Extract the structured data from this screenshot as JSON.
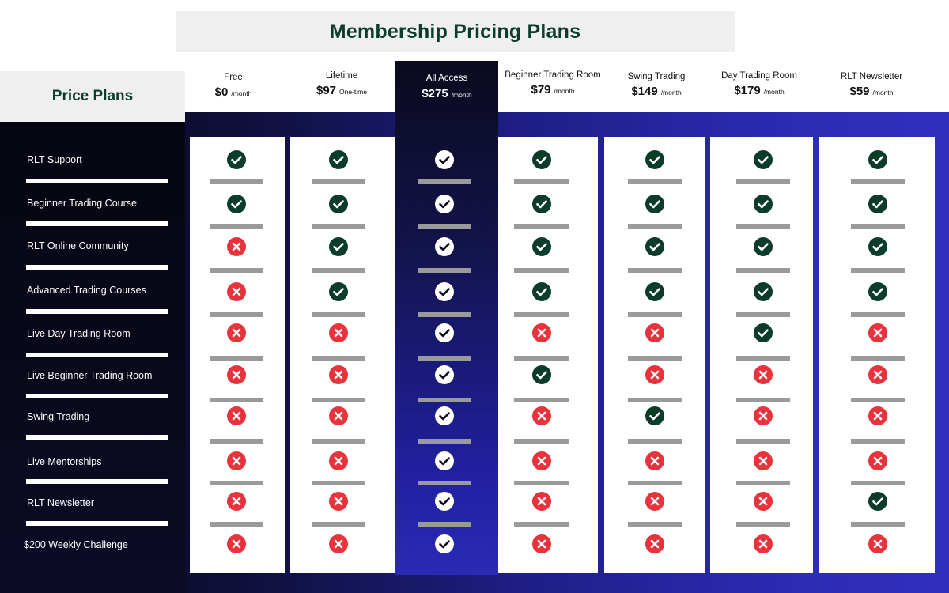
{
  "title": "Membership Pricing Plans",
  "price_plans_label": "Price Plans",
  "colors": {
    "check": "#0c3d2a",
    "cross": "#e8323c",
    "check_on_dark": "#ffffff",
    "title": "#0c3d2a"
  },
  "plans": [
    {
      "name": "Free",
      "price": "$0",
      "period": "/month"
    },
    {
      "name": "Lifetime",
      "price": "$97",
      "period": "One-time"
    },
    {
      "name": "All Access",
      "price": "$275",
      "period": "/month"
    },
    {
      "name": "Beginner Trading Room",
      "price": "$79",
      "period": "/month"
    },
    {
      "name": "Swing Trading",
      "price": "$149",
      "period": "/month"
    },
    {
      "name": "Day Trading Room",
      "price": "$179",
      "period": "/month"
    },
    {
      "name": "RLT Newsletter",
      "price": "$59",
      "period": "/month"
    }
  ],
  "features": [
    "RLT Support",
    "Beginner Trading Course",
    "RLT Online Community",
    "Advanced Trading Courses",
    "Live Day Trading Room",
    "Live Beginner Trading Room",
    "Swing Trading",
    "Live Mentorships",
    "RLT Newsletter",
    "$200 Weekly Challenge"
  ],
  "matrix": [
    [
      true,
      true,
      true,
      true,
      true,
      true,
      true
    ],
    [
      true,
      true,
      true,
      true,
      true,
      true,
      true
    ],
    [
      false,
      true,
      true,
      true,
      true,
      true,
      true
    ],
    [
      false,
      true,
      true,
      true,
      true,
      true,
      true
    ],
    [
      false,
      false,
      true,
      false,
      false,
      true,
      false
    ],
    [
      false,
      false,
      true,
      true,
      false,
      false,
      false
    ],
    [
      false,
      false,
      true,
      false,
      true,
      false,
      false
    ],
    [
      false,
      false,
      true,
      false,
      false,
      false,
      false
    ],
    [
      false,
      false,
      true,
      false,
      false,
      false,
      true
    ],
    [
      false,
      false,
      true,
      false,
      false,
      false,
      false
    ]
  ]
}
